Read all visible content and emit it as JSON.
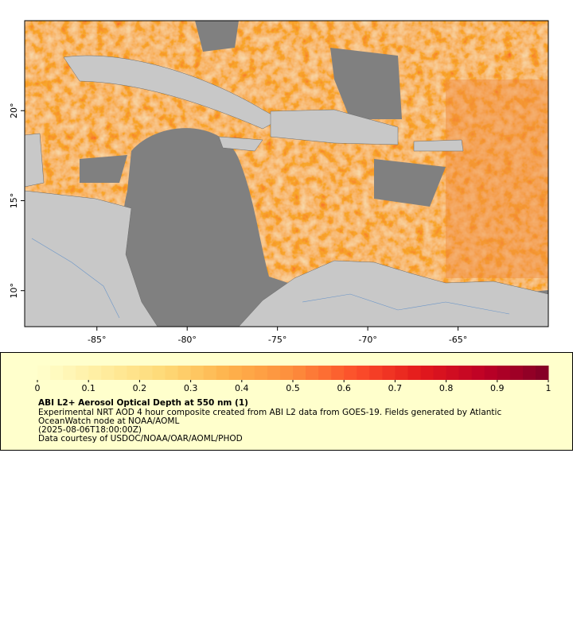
{
  "map": {
    "xlim": [
      -89,
      -60
    ],
    "ylim": [
      8,
      25
    ],
    "xticks": [
      {
        "value": -85,
        "label": "-85°"
      },
      {
        "value": -80,
        "label": "-80°"
      },
      {
        "value": -75,
        "label": "-75°"
      },
      {
        "value": -70,
        "label": "-70°"
      },
      {
        "value": -65,
        "label": "-65°"
      }
    ],
    "yticks": [
      {
        "value": 10,
        "label": "10°"
      },
      {
        "value": 15,
        "label": "15°"
      },
      {
        "value": 20,
        "label": "20°"
      }
    ]
  },
  "colorbar": {
    "clim": [
      0,
      1
    ],
    "ticks": [
      0,
      0.1,
      0.2,
      0.3,
      0.4,
      0.5,
      0.6,
      0.7,
      0.8,
      0.9,
      1
    ]
  },
  "caption": {
    "title": "ABI L2+ Aerosol Optical Depth at 550 nm (1)",
    "lines": [
      "Experimental NRT AOD 4 hour composite created from ABI L2 data from GOES-19. Fields generated by Atlantic",
      "OceanWatch node at NOAA/AOML",
      "(2025-08-06T18:00:00Z)",
      "Data courtesy of USDOC/NOAA/OAR/AOML/PHOD"
    ]
  }
}
